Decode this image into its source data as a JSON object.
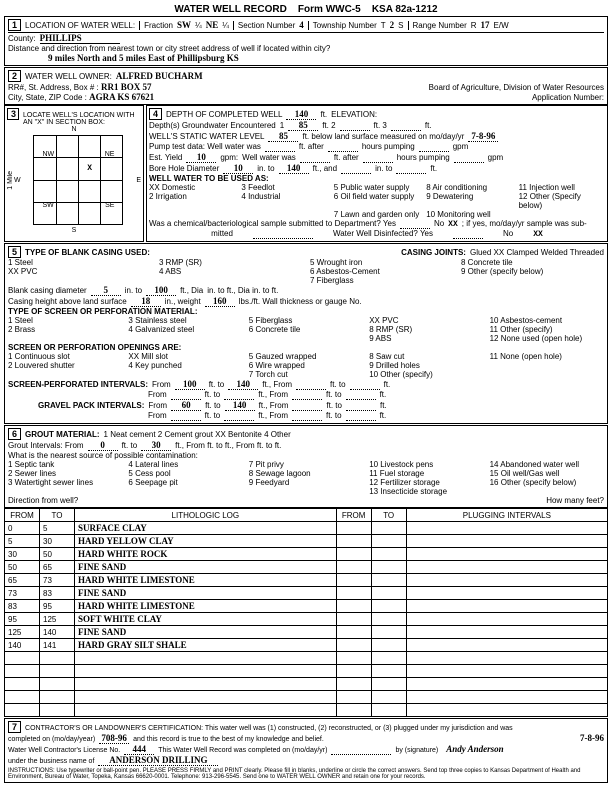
{
  "header": {
    "title": "WATER WELL RECORD",
    "form": "Form WWC-5",
    "ksa": "KSA 82a-1212"
  },
  "loc": {
    "county_label": "County:",
    "county": "PHILLIPS",
    "fraction_label": "Fraction",
    "frac1": "SW",
    "q1": "¼",
    "frac2": "NE",
    "q2": "¼",
    "section_label": "Section Number",
    "section": "4",
    "township_label": "Township Number",
    "township_t": "T",
    "township": "2",
    "township_s": "S",
    "range_label": "Range Number",
    "range_r": "R",
    "range": "17",
    "range_ew": "E/W",
    "dist_label": "Distance and direction from nearest town or city street address of well if located within city?",
    "dist": "9 miles North and 5 miles East of Phillipsburg KS"
  },
  "owner": {
    "label": "WATER WELL OWNER:",
    "name": "ALFRED BUCHARM",
    "rr_label": "RR#, St. Address, Box #  :",
    "rr": "RR1 BOX 57",
    "city_label": "City, State, ZIP Code  :",
    "city": "AGRA KS  67621",
    "board": "Board of Agriculture, Division of Water Resources",
    "appnum": "Application Number:"
  },
  "sec3": {
    "title": "LOCATE WELL'S LOCATION WITH AN \"X\" IN SECTION BOX:",
    "labels": {
      "n": "N",
      "s": "S",
      "e": "E",
      "w": "W",
      "nw": "NW",
      "ne": "NE",
      "sw": "SW",
      "se": "SE"
    },
    "mile": "1 Mile",
    "x": "X"
  },
  "sec4": {
    "depth_label": "DEPTH OF COMPLETED WELL",
    "depth": "140",
    "ft": "ft.",
    "elev": "ELEVATION:",
    "gw_label": "Depth(s) Groundwater Encountered",
    "gw1_lbl": "1",
    "gw1": "85",
    "gw2_lbl": "ft.   2",
    "gw3_lbl": "ft.   3",
    "gwend": "ft.",
    "swl_label": "WELL'S STATIC WATER LEVEL",
    "swl": "85",
    "swl_tail": "ft. below land surface measured on mo/day/yr",
    "swl_date": "7-8-96",
    "pump": "Pump test data:  Well water was",
    "after1": "ft. after",
    "hrs1": "hours pumping",
    "gpm1": "gpm",
    "est": "Est. Yield",
    "est_v": "10",
    "gpm": "gpm:",
    "ww2": "Well water was",
    "after2": "ft. after",
    "hrs2": "hours pumping",
    "gpm2": "gpm",
    "bh": "Bore Hole Diameter",
    "bh_v": "10",
    "bh_to": "in. to",
    "bh_to_v": "140",
    "bh_ft": "ft., and",
    "bh_in2": "in. to",
    "bh_ft2": "ft.",
    "use": "WELL WATER TO BE USED AS:",
    "uses": [
      "XX Domestic",
      "3 Feedlot",
      "5 Public water supply",
      "8 Air conditioning",
      "11 Injection well",
      "2 Irrigation",
      "4 Industrial",
      "6 Oil field water supply",
      "9 Dewatering",
      "12 Other (Specify below)",
      "",
      "",
      "7 Lawn and garden only",
      "10 Monitoring well",
      ""
    ],
    "chem": "Was a chemical/bacteriological sample submitted to Department?  Yes",
    "chem_no": "No",
    "chem_x": "XX",
    "chem_tail": "; if yes, mo/day/yr sample was sub-",
    "mitted": "mitted",
    "disinf": "Water Well Disinfected?  Yes",
    "disinf_no": "No",
    "disinf_x": "XX"
  },
  "sec5": {
    "title": "TYPE OF BLANK CASING USED:",
    "opts": [
      "1 Steel",
      "3 RMP (SR)",
      "5 Wrought iron",
      "8 Concrete tile",
      "XX PVC",
      "4 ABS",
      "6 Asbestos-Cement",
      "9 Other (specify below)",
      "",
      "",
      "7 Fiberglass",
      ""
    ],
    "joints_lbl": "CASING JOINTS:",
    "joints": [
      "Glued  XX",
      "Clamped",
      "Welded",
      "Threaded"
    ],
    "bcd": "Blank casing diameter",
    "bcd_v": "5",
    "bcd_to": "in. to",
    "bcd_to_v": "100",
    "bcd_ft": "ft., Dia",
    "bcd_rest": "in. to            ft., Dia            in. to            ft.",
    "cha": "Casing height above land surface",
    "cha_v": "18",
    "cha_in": "in., weight",
    "cha_w": "160",
    "cha_lbs": "lbs./ft. Wall thickness or gauge No.",
    "perf": "TYPE OF SCREEN OR PERFORATION MATERIAL:",
    "perf_opts": [
      "1 Steel",
      "3 Stainless steel",
      "5 Fiberglass",
      "XX PVC",
      "10 Asbestos-cement",
      "2 Brass",
      "4 Galvanized steel",
      "6 Concrete tile",
      "8 RMP (SR)",
      "11 Other (specify)",
      "",
      "",
      "",
      "9 ABS",
      "12 None used (open hole)"
    ],
    "open": "SCREEN OR PERFORATION OPENINGS ARE:",
    "open_opts": [
      "1 Continuous slot",
      "XX Mill slot",
      "5 Gauzed wrapped",
      "8 Saw cut",
      "11 None (open hole)",
      "2 Louvered shutter",
      "4 Key punched",
      "6 Wire wrapped",
      "9 Drilled holes",
      "",
      "",
      "",
      "7 Torch cut",
      "10 Other (specify)",
      ""
    ],
    "spi": "SCREEN-PERFORATED INTERVALS:",
    "from": "From",
    "to": "ft. to",
    "fttail": "ft., From",
    "ftto2": "ft. to",
    "ftend": "ft.",
    "spi_f1": "100",
    "spi_t1": "140",
    "gpi": "GRAVEL PACK INTERVALS:",
    "gpi_f1": "60",
    "gpi_t1": "140"
  },
  "sec6": {
    "title": "GROUT MATERIAL:",
    "opts": [
      "1 Neat cement",
      "2 Cement grout",
      "XX Bentonite",
      "4 Other"
    ],
    "gi": "Grout Intervals:   From",
    "gi_f": "0",
    "gi_to": "ft. to",
    "gi_t": "30",
    "gi_rest": "ft., From            ft. to            ft., From            ft. to            ft.",
    "contam": "What is the nearest source of possible contamination:",
    "contam_opts": [
      "1 Septic tank",
      "4 Lateral lines",
      "7 Pit privy",
      "10 Livestock pens",
      "14 Abandoned water well",
      "2 Sewer lines",
      "5 Cess pool",
      "8 Sewage lagoon",
      "11 Fuel storage",
      "15 Oil well/Gas well",
      "3 Watertight sewer lines",
      "6 Seepage pit",
      "9 Feedyard",
      "12 Fertilizer storage",
      "16 Other (specify below)",
      "",
      "",
      "",
      "13 Insecticide storage",
      ""
    ],
    "dir": "Direction from well?",
    "hmf": "How many feet?"
  },
  "lith": {
    "headers": [
      "FROM",
      "TO",
      "LITHOLOGIC LOG",
      "FROM",
      "TO",
      "PLUGGING INTERVALS"
    ],
    "rows": [
      [
        "0",
        "5",
        "SURFACE CLAY",
        "",
        "",
        ""
      ],
      [
        "5",
        "30",
        "HARD YELLOW CLAY",
        "",
        "",
        ""
      ],
      [
        "30",
        "50",
        "HARD WHITE ROCK",
        "",
        "",
        ""
      ],
      [
        "50",
        "65",
        "FINE SAND",
        "",
        "",
        ""
      ],
      [
        "65",
        "73",
        "HARD WHITE LIMESTONE",
        "",
        "",
        ""
      ],
      [
        "73",
        "83",
        "FINE SAND",
        "",
        "",
        ""
      ],
      [
        "83",
        "95",
        "HARD WHITE LIMESTONE",
        "",
        "",
        ""
      ],
      [
        "95",
        "125",
        "SOFT WHITE CLAY",
        "",
        "",
        ""
      ],
      [
        "125",
        "140",
        "FINE SAND",
        "",
        "",
        ""
      ],
      [
        "140",
        "141",
        "HARD GRAY SILT SHALE",
        "",
        "",
        ""
      ]
    ],
    "blank_rows": 5
  },
  "sec7": {
    "cert": "CONTRACTOR'S OR LANDOWNER'S CERTIFICATION: This water well was (1) constructed, (2) reconstructed, or (3) plugged under my jurisdiction and was",
    "cert2_a": "completed on (mo/day/year)",
    "cert2_date": "708-96",
    "cert2_b": "and this record is true to the best of my knowledge and belief.",
    "cert2_date2": "7-8-96",
    "lic": "Water Well Contractor's License No.",
    "lic_v": "444",
    "lic_tail": "This Water Well Record was completed on (mo/day/yr)",
    "by": "by (signature)",
    "biz": "under the business name of",
    "biz_v": "ANDERSON DRILLING",
    "instr": "INSTRUCTIONS: Use typewriter or ball-point pen. PLEASE PRESS FIRMLY and PRINT clearly. Please fill in blanks, underline or circle the correct answers. Send top three copies to Kansas Department of Health and Environment, Bureau of Water, Topeka, Kansas 66620-0001. Telephone: 913-296-5545. Send one to WATER WELL OWNER and retain one for your records."
  }
}
